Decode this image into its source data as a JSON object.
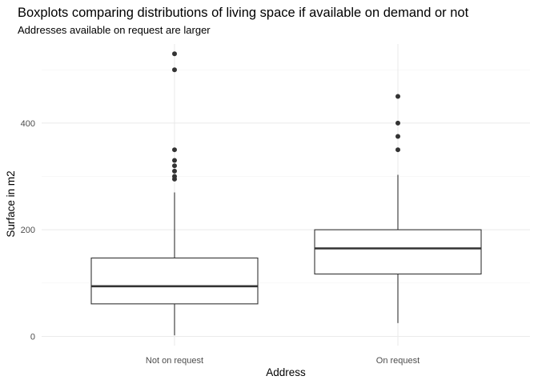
{
  "chart_data": {
    "type": "boxplot",
    "title": "Boxplots comparing distributions of living space if available on demand or not",
    "subtitle": "Addresses available on request are larger",
    "xlabel": "Address",
    "ylabel": "Surface in m2",
    "ylim": [
      -5,
      555
    ],
    "y_ticks": [
      0,
      200,
      400
    ],
    "y_minor_ticks": [
      100,
      300,
      500
    ],
    "grid": true,
    "categories": [
      "Not on request",
      "On request"
    ],
    "boxes": [
      {
        "category": "Not on request",
        "whisker_low": 2,
        "q1": 61,
        "median": 94,
        "q3": 147,
        "whisker_high": 270,
        "outliers": [
          295,
          300,
          310,
          320,
          330,
          350,
          500,
          530
        ]
      },
      {
        "category": "On request",
        "whisker_low": 25,
        "q1": 117,
        "median": 165,
        "q3": 200,
        "whisker_high": 303,
        "outliers": [
          350,
          375,
          400,
          450
        ]
      }
    ],
    "colors": {
      "box_line": "#333333",
      "box_fill": "#ffffff",
      "grid": "#ebebeb",
      "background": "#ffffff"
    }
  }
}
